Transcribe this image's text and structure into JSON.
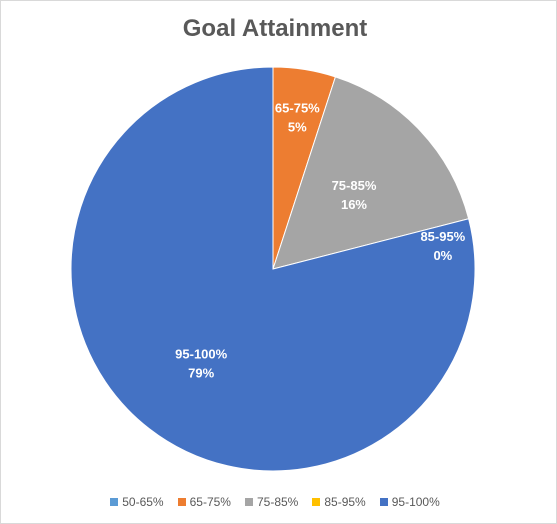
{
  "chart_data": {
    "type": "pie",
    "title": "Goal Attainment",
    "categories": [
      "50-65%",
      "65-75%",
      "75-85%",
      "85-95%",
      "95-100%"
    ],
    "values": [
      0,
      5,
      16,
      0,
      79
    ],
    "colors": [
      "#5b9bd5",
      "#ed7d31",
      "#a5a5a5",
      "#ffc000",
      "#4472c4"
    ],
    "data_labels": [
      null,
      {
        "category": "65-75%",
        "percent": "5%"
      },
      {
        "category": "75-85%",
        "percent": "16%"
      },
      {
        "category": "85-95%",
        "percent": "0%"
      },
      {
        "category": "95-100%",
        "percent": "79%"
      }
    ],
    "start_angle_deg": 0,
    "direction": "clockwise",
    "legend_position": "bottom"
  }
}
